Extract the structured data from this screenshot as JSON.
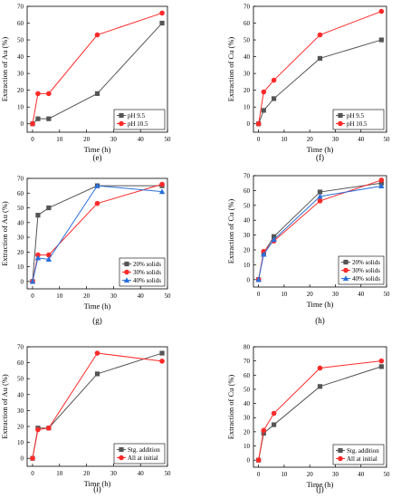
{
  "chart_data": [
    {
      "type": "line",
      "panel_label": "(e)",
      "xlabel": "Time (h)",
      "ylabel": "Extraction of Au (%)",
      "xlim": [
        -2,
        50
      ],
      "ylim": [
        -5,
        70
      ],
      "xticks": [
        0,
        10,
        20,
        30,
        40,
        50
      ],
      "yticks": [
        0,
        10,
        20,
        30,
        40,
        50,
        60,
        70
      ],
      "legend_position": "bottom-right",
      "series": [
        {
          "name": "pH 9.5",
          "color": "#555555",
          "marker": "square",
          "x": [
            0,
            2,
            6,
            24,
            48
          ],
          "y": [
            0,
            3,
            3,
            18,
            60
          ]
        },
        {
          "name": "pH 10.5",
          "color": "#ff2a2a",
          "marker": "circle",
          "x": [
            0,
            2,
            6,
            24,
            48
          ],
          "y": [
            0,
            18,
            18,
            53,
            66
          ]
        }
      ]
    },
    {
      "type": "line",
      "panel_label": "(f)",
      "xlabel": "Time (h)",
      "ylabel": "Extraction of Cu (%)",
      "xlim": [
        -2,
        50
      ],
      "ylim": [
        -5,
        70
      ],
      "xticks": [
        0,
        10,
        20,
        30,
        40,
        50
      ],
      "yticks": [
        0,
        10,
        20,
        30,
        40,
        50,
        60,
        70
      ],
      "legend_position": "bottom-right",
      "series": [
        {
          "name": "pH 9.5",
          "color": "#555555",
          "marker": "square",
          "x": [
            0,
            2,
            6,
            24,
            48
          ],
          "y": [
            0,
            8,
            15,
            39,
            50
          ]
        },
        {
          "name": "pH 10.5",
          "color": "#ff2a2a",
          "marker": "circle",
          "x": [
            0,
            2,
            6,
            24,
            48
          ],
          "y": [
            0,
            19,
            26,
            53,
            67
          ]
        }
      ]
    },
    {
      "type": "line",
      "panel_label": "(g)",
      "xlabel": "Time (h)",
      "ylabel": "Extraction of Au (%)",
      "xlim": [
        -2,
        50
      ],
      "ylim": [
        -5,
        70
      ],
      "xticks": [
        0,
        10,
        20,
        30,
        40,
        50
      ],
      "yticks": [
        0,
        10,
        20,
        30,
        40,
        50,
        60,
        70
      ],
      "legend_position": "bottom-right",
      "series": [
        {
          "name": "20% solids",
          "color": "#555555",
          "marker": "square",
          "x": [
            0,
            2,
            6,
            24,
            48
          ],
          "y": [
            0,
            45,
            50,
            65,
            65
          ]
        },
        {
          "name": "30% solids",
          "color": "#ff2a2a",
          "marker": "circle",
          "x": [
            0,
            2,
            6,
            24,
            48
          ],
          "y": [
            0,
            18,
            18,
            53,
            66
          ]
        },
        {
          "name": "40% solids",
          "color": "#2a6fdb",
          "marker": "triangle",
          "x": [
            0,
            2,
            6,
            24,
            48
          ],
          "y": [
            0,
            16,
            15,
            65,
            61
          ]
        }
      ]
    },
    {
      "type": "line",
      "panel_label": "(h)",
      "xlabel": "Time (h)",
      "ylabel": "Extraction of Cu (%)",
      "xlim": [
        -2,
        50
      ],
      "ylim": [
        -5,
        70
      ],
      "xticks": [
        0,
        10,
        20,
        30,
        40,
        50
      ],
      "yticks": [
        0,
        10,
        20,
        30,
        40,
        50,
        60,
        70
      ],
      "legend_position": "bottom-right",
      "series": [
        {
          "name": "20% solids",
          "color": "#555555",
          "marker": "square",
          "x": [
            0,
            2,
            6,
            24,
            48
          ],
          "y": [
            0,
            18,
            29,
            59,
            65
          ]
        },
        {
          "name": "30% solids",
          "color": "#ff2a2a",
          "marker": "circle",
          "x": [
            0,
            2,
            6,
            24,
            48
          ],
          "y": [
            0,
            19,
            26,
            53,
            67
          ]
        },
        {
          "name": "40% solids",
          "color": "#2a6fdb",
          "marker": "triangle",
          "x": [
            0,
            2,
            6,
            24,
            48
          ],
          "y": [
            0,
            17,
            27,
            56,
            63
          ]
        }
      ]
    },
    {
      "type": "line",
      "panel_label": "(i)",
      "xlabel": "Time (h)",
      "ylabel": "Extraction of Au (%)",
      "xlim": [
        -2,
        50
      ],
      "ylim": [
        -5,
        70
      ],
      "xticks": [
        0,
        10,
        20,
        30,
        40,
        50
      ],
      "yticks": [
        0,
        10,
        20,
        30,
        40,
        50,
        60,
        70
      ],
      "legend_position": "bottom-right",
      "series": [
        {
          "name": "Stg. addition",
          "color": "#555555",
          "marker": "square",
          "x": [
            0,
            2,
            6,
            24,
            48
          ],
          "y": [
            0,
            19,
            19,
            53,
            66
          ]
        },
        {
          "name": "All at initial",
          "color": "#ff2a2a",
          "marker": "circle",
          "x": [
            0,
            2,
            6,
            24,
            48
          ],
          "y": [
            0,
            18,
            19,
            66,
            61
          ]
        }
      ]
    },
    {
      "type": "line",
      "panel_label": "(j)",
      "xlabel": "Time (h)",
      "ylabel": "Extraction of Cu (%)",
      "xlim": [
        -2,
        50
      ],
      "ylim": [
        -5,
        80
      ],
      "xticks": [
        0,
        10,
        20,
        30,
        40,
        50
      ],
      "yticks": [
        0,
        10,
        20,
        30,
        40,
        50,
        60,
        70,
        80
      ],
      "legend_position": "bottom-right",
      "series": [
        {
          "name": "Stg. addition",
          "color": "#555555",
          "marker": "square",
          "x": [
            0,
            2,
            6,
            24,
            48
          ],
          "y": [
            0,
            19,
            25,
            52,
            66
          ]
        },
        {
          "name": "All at initial",
          "color": "#ff2a2a",
          "marker": "circle",
          "x": [
            0,
            2,
            6,
            24,
            48
          ],
          "y": [
            0,
            21,
            33,
            65,
            70
          ]
        }
      ]
    }
  ]
}
